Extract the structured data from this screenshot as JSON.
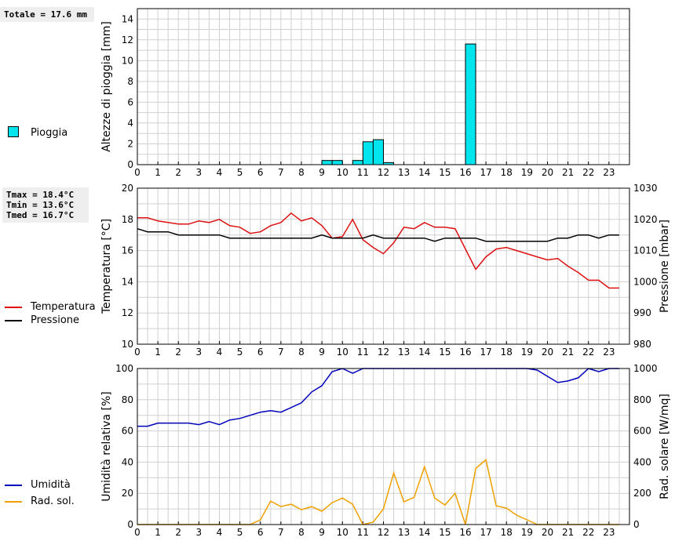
{
  "info": {
    "rain_total": "Totale = 17.6 mm",
    "tmax": "Tmax = 18.4°C",
    "tmin": "Tmin = 13.6°C",
    "tmed": "Tmed = 16.7°C"
  },
  "legends": {
    "rain": "Pioggia",
    "temperature": "Temperatura",
    "pressure": "Pressione",
    "humidity": "Umidità",
    "solar": "Rad. sol."
  },
  "colors": {
    "rain": "#00e5ee",
    "temperature": "#dd1111",
    "pressure": "#000000",
    "humidity": "#0000bb",
    "solar": "#f0a000",
    "grid": "#d0d0d0"
  },
  "chart_data": [
    {
      "type": "bar",
      "ylabel": "Altezze di pioggia [mm]",
      "xlim": [
        0,
        24
      ],
      "ylim": [
        0,
        15
      ],
      "yticks": [
        0,
        2,
        4,
        6,
        8,
        10,
        12,
        14
      ],
      "xticks": [
        0,
        1,
        2,
        3,
        4,
        5,
        6,
        7,
        8,
        9,
        10,
        11,
        12,
        13,
        14,
        15,
        16,
        17,
        18,
        19,
        20,
        21,
        22,
        23
      ],
      "bar_width": 0.5,
      "bars": [
        {
          "x": 9.0,
          "value": 0.4
        },
        {
          "x": 9.5,
          "value": 0.4
        },
        {
          "x": 10.5,
          "value": 0.4
        },
        {
          "x": 11.0,
          "value": 2.2
        },
        {
          "x": 11.5,
          "value": 2.4
        },
        {
          "x": 12.0,
          "value": 0.2
        },
        {
          "x": 16.0,
          "value": 11.6
        }
      ]
    },
    {
      "type": "line",
      "ylabel": "Temperatura [°C]",
      "y2label": "Pressione [mbar]",
      "xlim": [
        0,
        24
      ],
      "ylim": [
        10,
        20
      ],
      "y2lim": [
        980,
        1030
      ],
      "yticks": [
        10,
        12,
        14,
        16,
        18,
        20
      ],
      "y2ticks": [
        980,
        990,
        1000,
        1010,
        1020,
        1030
      ],
      "xticks": [
        0,
        1,
        2,
        3,
        4,
        5,
        6,
        7,
        8,
        9,
        10,
        11,
        12,
        13,
        14,
        15,
        16,
        17,
        18,
        19,
        20,
        21,
        22,
        23
      ],
      "series": [
        {
          "name": "Temperatura",
          "axis": "left",
          "x": [
            0,
            0.5,
            1,
            1.5,
            2,
            2.5,
            3,
            3.5,
            4,
            4.5,
            5,
            5.5,
            6,
            6.5,
            7,
            7.5,
            8,
            8.5,
            9,
            9.5,
            10,
            10.5,
            11,
            11.5,
            12,
            12.5,
            13,
            13.5,
            14,
            14.5,
            15,
            15.5,
            16,
            16.5,
            17,
            17.5,
            18,
            18.5,
            19,
            19.5,
            20,
            20.5,
            21,
            21.5,
            22,
            22.5,
            23,
            23.5
          ],
          "values": [
            18.1,
            18.1,
            17.9,
            17.8,
            17.7,
            17.7,
            17.9,
            17.8,
            18.0,
            17.6,
            17.5,
            17.1,
            17.2,
            17.6,
            17.8,
            18.4,
            17.9,
            18.1,
            17.6,
            16.8,
            16.9,
            18.0,
            16.7,
            16.2,
            15.8,
            16.5,
            17.5,
            17.4,
            17.8,
            17.5,
            17.5,
            17.4,
            16.1,
            14.8,
            15.6,
            16.1,
            16.2,
            16.0,
            15.8,
            15.6,
            15.4,
            15.5,
            15.0,
            14.6,
            14.1,
            14.1,
            13.6,
            13.6
          ]
        },
        {
          "name": "Pressione",
          "axis": "right",
          "x": [
            0,
            0.5,
            1,
            1.5,
            2,
            2.5,
            3,
            3.5,
            4,
            4.5,
            5,
            5.5,
            6,
            6.5,
            7,
            7.5,
            8,
            8.5,
            9,
            9.5,
            10,
            10.5,
            11,
            11.5,
            12,
            12.5,
            13,
            13.5,
            14,
            14.5,
            15,
            15.5,
            16,
            16.5,
            17,
            17.5,
            18,
            18.5,
            19,
            19.5,
            20,
            20.5,
            21,
            21.5,
            22,
            22.5,
            23,
            23.5
          ],
          "values": [
            1017,
            1016,
            1016,
            1016,
            1015,
            1015,
            1015,
            1015,
            1015,
            1014,
            1014,
            1014,
            1014,
            1014,
            1014,
            1014,
            1014,
            1014,
            1015,
            1014,
            1014,
            1014,
            1014,
            1015,
            1014,
            1014,
            1014,
            1014,
            1014,
            1013,
            1014,
            1014,
            1014,
            1014,
            1013,
            1013,
            1013,
            1013,
            1013,
            1013,
            1013,
            1014,
            1014,
            1015,
            1015,
            1014,
            1015,
            1015
          ]
        }
      ]
    },
    {
      "type": "line",
      "ylabel": "Umidità relativa [%]",
      "y2label": "Rad. solare [W/mq]",
      "xlim": [
        0,
        24
      ],
      "ylim": [
        0,
        100
      ],
      "y2lim": [
        0,
        1000
      ],
      "yticks": [
        0,
        20,
        40,
        60,
        80,
        100
      ],
      "y2ticks": [
        0,
        200,
        400,
        600,
        800,
        1000
      ],
      "xticks": [
        0,
        1,
        2,
        3,
        4,
        5,
        6,
        7,
        8,
        9,
        10,
        11,
        12,
        13,
        14,
        15,
        16,
        17,
        18,
        19,
        20,
        21,
        22,
        23
      ],
      "series": [
        {
          "name": "Umidità",
          "axis": "left",
          "x": [
            0,
            0.5,
            1,
            1.5,
            2,
            2.5,
            3,
            3.5,
            4,
            4.5,
            5,
            5.5,
            6,
            6.5,
            7,
            7.5,
            8,
            8.5,
            9,
            9.5,
            10,
            10.5,
            11,
            11.5,
            12,
            12.5,
            13,
            13.5,
            14,
            14.5,
            15,
            15.5,
            16,
            16.5,
            17,
            17.5,
            18,
            18.5,
            19,
            19.5,
            20,
            20.5,
            21,
            21.5,
            22,
            22.5,
            23,
            23.5
          ],
          "values": [
            63,
            63,
            65,
            65,
            65,
            65,
            64,
            66,
            64,
            67,
            68,
            70,
            72,
            73,
            72,
            75,
            78,
            85,
            89,
            98,
            100,
            97,
            100,
            100,
            100,
            100,
            100,
            100,
            100,
            100,
            100,
            100,
            100,
            100,
            100,
            100,
            100,
            100,
            100,
            99,
            95,
            91,
            92,
            94,
            100,
            98,
            100,
            100
          ]
        },
        {
          "name": "Rad. sol.",
          "axis": "right",
          "x": [
            0,
            0.5,
            1,
            1.5,
            2,
            2.5,
            3,
            3.5,
            4,
            4.5,
            5,
            5.5,
            6,
            6.5,
            7,
            7.5,
            8,
            8.5,
            9,
            9.5,
            10,
            10.5,
            11,
            11.5,
            12,
            12.5,
            13,
            13.5,
            14,
            14.5,
            15,
            15.5,
            16,
            16.5,
            17,
            17.5,
            18,
            18.5,
            19,
            19.5,
            20,
            20.5,
            21,
            21.5,
            22,
            22.5,
            23,
            23.5
          ],
          "values": [
            0,
            0,
            0,
            0,
            0,
            0,
            0,
            0,
            0,
            0,
            0,
            0,
            30,
            150,
            115,
            130,
            95,
            115,
            85,
            140,
            170,
            130,
            0,
            15,
            100,
            330,
            145,
            175,
            370,
            170,
            125,
            200,
            0,
            360,
            415,
            120,
            105,
            60,
            30,
            0,
            0,
            0,
            0,
            0,
            0,
            0,
            0,
            0
          ]
        }
      ]
    }
  ]
}
